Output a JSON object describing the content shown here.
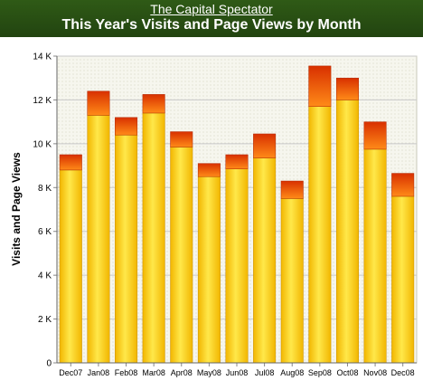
{
  "header": {
    "site_link": "The Capital Spectator",
    "title": "This Year's Visits and Page Views by Month"
  },
  "colors": {
    "header_bg": "#2a4f14",
    "visits_top": "#ffe840",
    "visits_bottom": "#f0b800",
    "pageviews_top": "#e03a00",
    "pageviews_bottom": "#ff7a10",
    "plot_bg": "#f4f4e8"
  },
  "chart_data": {
    "type": "bar",
    "stacked": true,
    "categories": [
      "Dec07",
      "Jan08",
      "Feb08",
      "Mar08",
      "Apr08",
      "May08",
      "Jun08",
      "Jul08",
      "Aug08",
      "Sep08",
      "Oct08",
      "Nov08",
      "Dec08"
    ],
    "series": [
      {
        "values": [
          8800,
          11300,
          10400,
          11400,
          9850,
          8500,
          8850,
          9350,
          7500,
          11700,
          12000,
          9750,
          7600
        ]
      },
      {
        "values": [
          700,
          1100,
          800,
          850,
          700,
          600,
          650,
          1100,
          800,
          1850,
          1000,
          1250,
          1050
        ]
      }
    ],
    "ylabel": "Visits and Page Views",
    "ylim": [
      0,
      14000
    ],
    "y_ticks": [
      "0",
      "2 K",
      "4 K",
      "6 K",
      "8 K",
      "10 K",
      "12 K",
      "14 K"
    ],
    "grid": true
  }
}
